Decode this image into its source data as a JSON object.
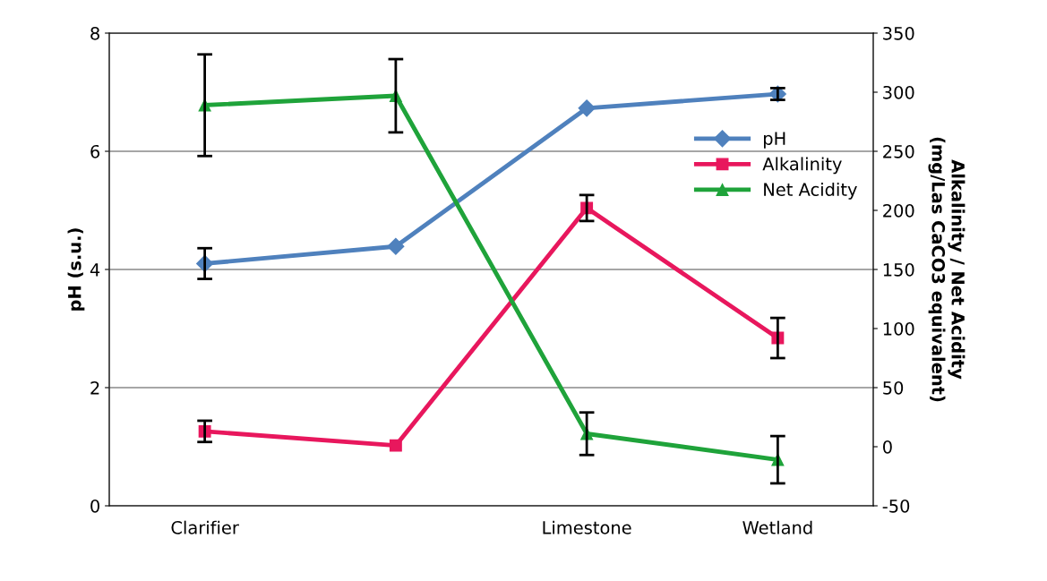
{
  "chart_data": {
    "type": "line",
    "categories": [
      "Clarifier",
      null,
      "Limestone",
      "Wetland"
    ],
    "ylabel": "pH (s.u.)",
    "y2label": "Alkalinity / Net Acidity\n(mg/Las CaCO3 equivalent)",
    "ylim": [
      0,
      8
    ],
    "yticks": [
      0,
      2,
      4,
      6,
      8
    ],
    "y2lim": [
      -50,
      350
    ],
    "y2ticks": [
      -50,
      0,
      50,
      100,
      150,
      200,
      250,
      300,
      350
    ],
    "grid": "y",
    "legend": "right",
    "series": [
      {
        "name": "pH",
        "color": "#4f81bd",
        "marker": "diamond",
        "values": [
          4.1,
          4.39,
          6.73,
          6.97
        ],
        "errors": [
          0.26,
          null,
          null,
          0.1
        ]
      },
      {
        "name": "Alkalinity",
        "color": "#e8175d",
        "marker": "square",
        "axis": "y2",
        "values": [
          13,
          1,
          202,
          92
        ],
        "errors": [
          9,
          null,
          11,
          17
        ]
      },
      {
        "name": "Net Acidity",
        "color": "#1fa33a",
        "marker": "triangle",
        "axis": "y2",
        "values": [
          289,
          297,
          11,
          -11
        ],
        "errors": [
          43,
          31,
          18,
          20
        ]
      }
    ]
  }
}
